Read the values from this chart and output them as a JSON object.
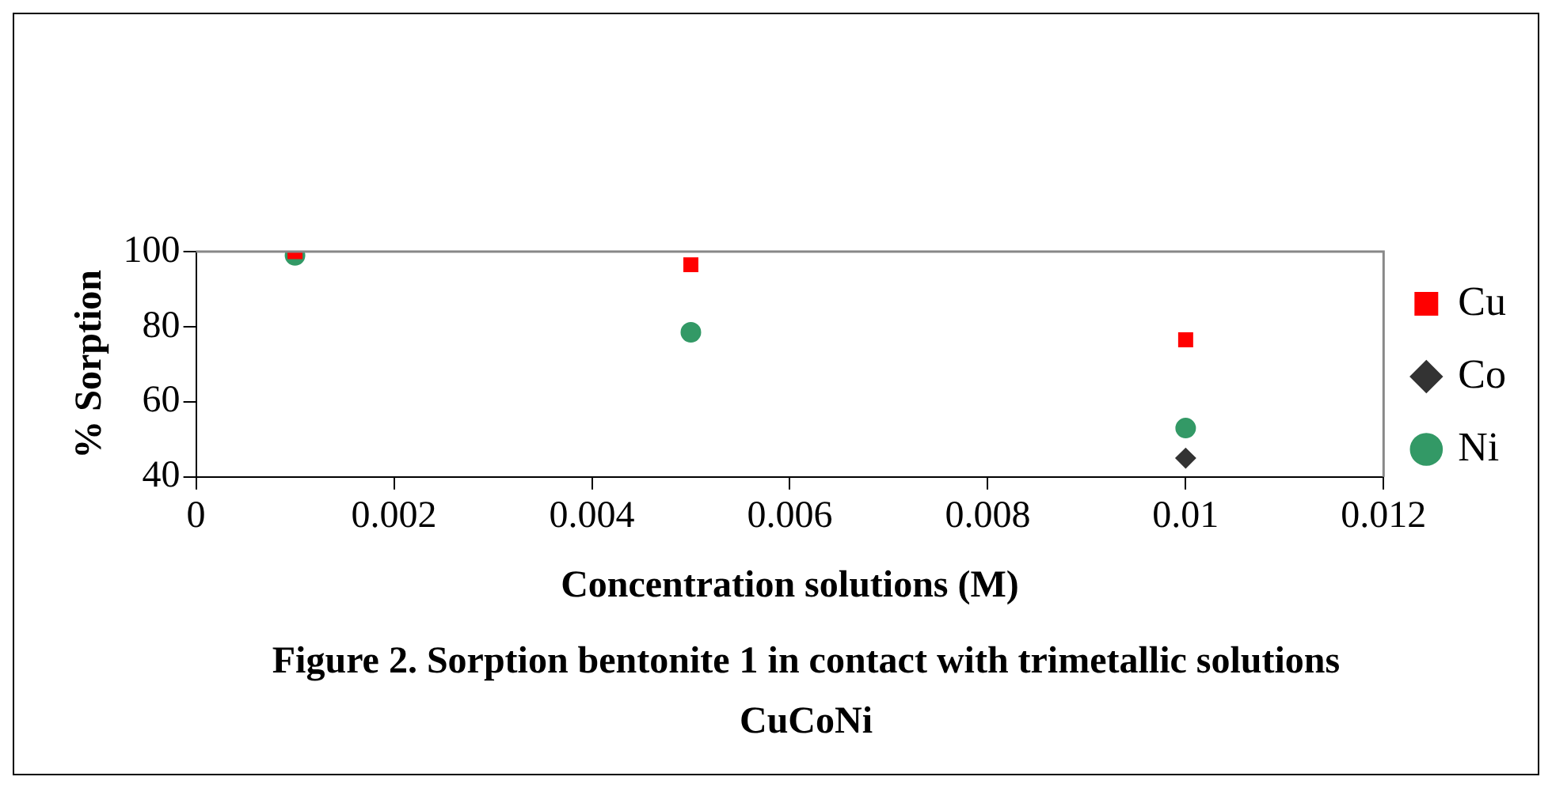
{
  "chart_data": {
    "type": "scatter",
    "title": "Figure 2. Sorption bentonite 1 in contact with trimetallic solutions CuCoNi",
    "xlabel": "Concentration solutions (M)",
    "ylabel": "% Sorption",
    "x": [
      0.001,
      0.005,
      0.01
    ],
    "series": [
      {
        "name": "Cu",
        "color": "#ff0000",
        "marker": "square",
        "values": [
          100,
          96.5,
          76.5
        ]
      },
      {
        "name": "Co",
        "color": "#333333",
        "marker": "diamond",
        "values": [
          null,
          null,
          45
        ]
      },
      {
        "name": "Ni",
        "color": "#339966",
        "marker": "circle",
        "values": [
          99,
          78.5,
          53
        ]
      }
    ],
    "xlim": [
      0,
      0.012
    ],
    "xticks": [
      0,
      0.002,
      0.004,
      0.006,
      0.008,
      0.01,
      0.012
    ],
    "ylim": [
      40,
      100
    ],
    "yticks": [
      40,
      60,
      80,
      100
    ],
    "grid": false,
    "legend": "right"
  }
}
